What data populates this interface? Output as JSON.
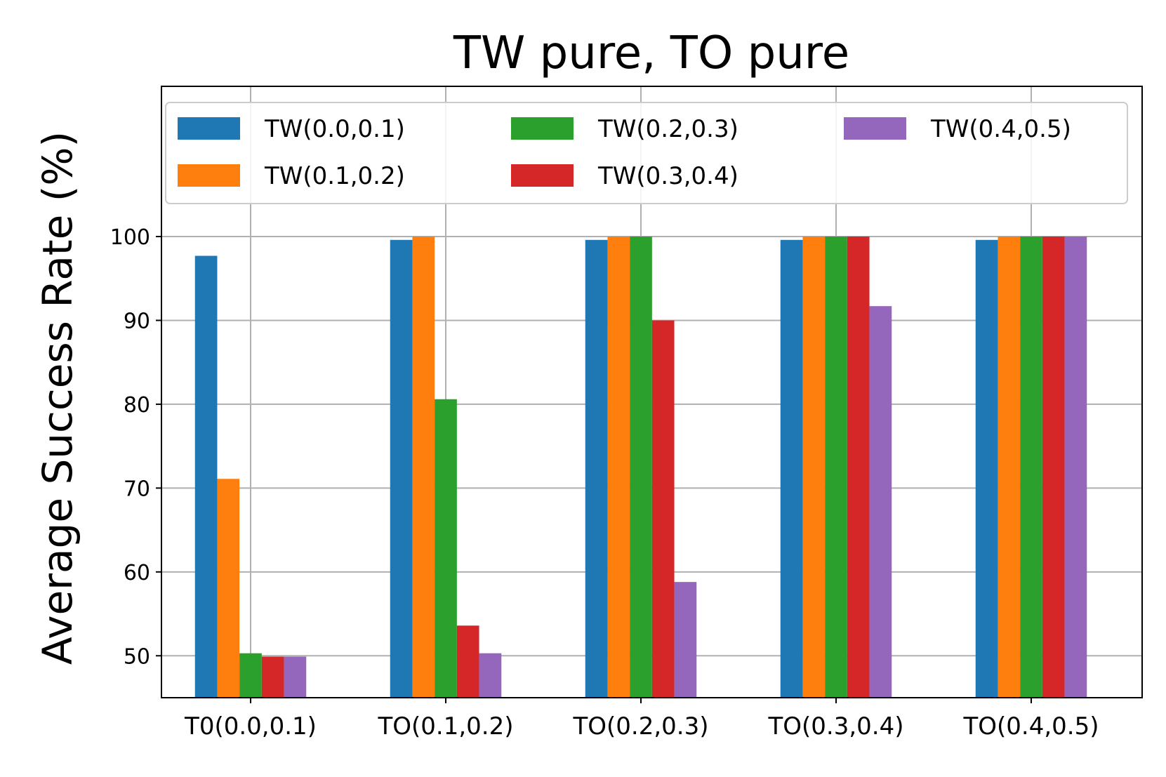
{
  "chart_data": {
    "type": "bar",
    "title": "TW pure, TO pure",
    "xlabel": "",
    "ylabel": "Average Success Rate (%)",
    "categories": [
      "T0(0.0,0.1)",
      "TO(0.1,0.2)",
      "TO(0.2,0.3)",
      "TO(0.3,0.4)",
      "TO(0.4,0.5)"
    ],
    "ylim": [
      45,
      100
    ],
    "yticks": [
      50,
      60,
      70,
      80,
      90,
      100
    ],
    "grid": true,
    "legend_position": "top",
    "legend_columns": 3,
    "series": [
      {
        "name": "TW(0.0,0.1)",
        "color": "#1f77b4",
        "values": [
          97.7,
          99.6,
          99.6,
          99.6,
          99.6
        ]
      },
      {
        "name": "TW(0.1,0.2)",
        "color": "#ff7f0e",
        "values": [
          71.1,
          100,
          100,
          100,
          100
        ]
      },
      {
        "name": "TW(0.2,0.3)",
        "color": "#2ca02c",
        "values": [
          50.3,
          80.6,
          100,
          100,
          100
        ]
      },
      {
        "name": "TW(0.3,0.4)",
        "color": "#d62728",
        "values": [
          49.9,
          53.6,
          90.0,
          100,
          100
        ]
      },
      {
        "name": "TW(0.4,0.5)",
        "color": "#9467bd",
        "values": [
          49.9,
          50.3,
          58.8,
          91.7,
          100
        ]
      }
    ]
  }
}
